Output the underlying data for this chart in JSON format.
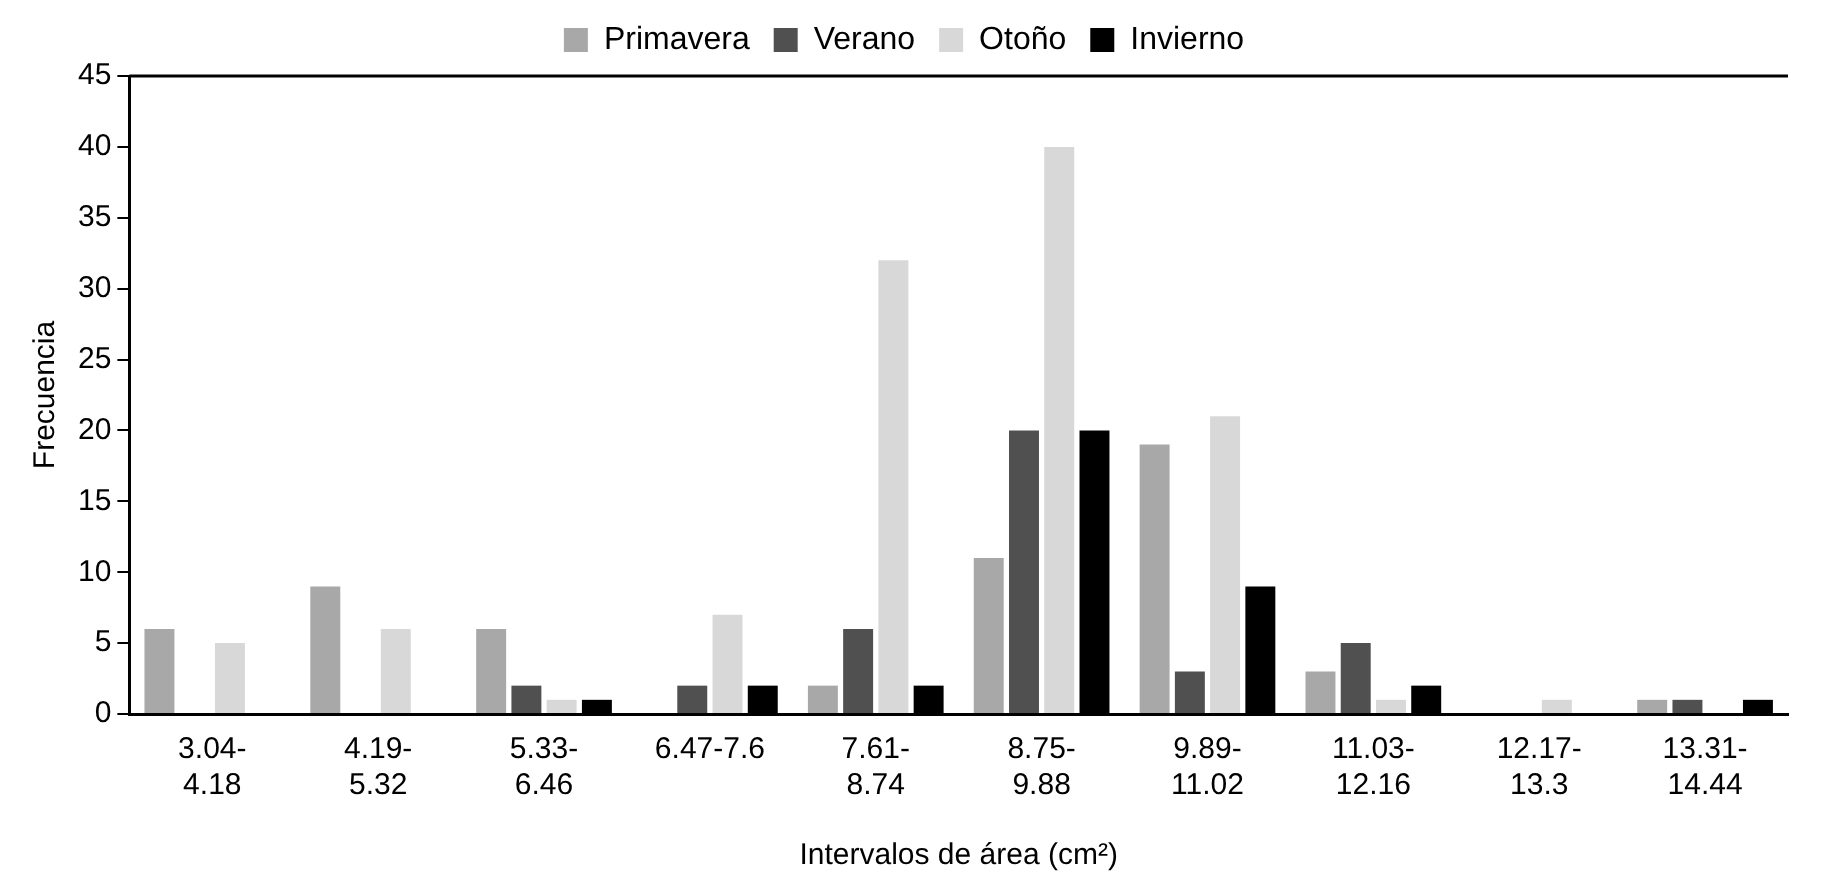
{
  "chart_data": {
    "type": "bar",
    "xlabel": "Intervalos de área (cm²)",
    "ylabel": "Frecuencia",
    "categories": [
      "3.04-\n4.18",
      "4.19-\n5.32",
      "5.33-\n6.46",
      "6.47-7.6",
      "7.61-\n8.74",
      "8.75-\n9.88",
      "9.89-\n11.02",
      "11.03-\n12.16",
      "12.17-\n13.3",
      "13.31-\n14.44"
    ],
    "series": [
      {
        "name": "Primavera",
        "color": "#a8a8a8",
        "values": [
          6,
          9,
          6,
          0,
          2,
          11,
          19,
          3,
          0,
          1
        ]
      },
      {
        "name": "Verano",
        "color": "#505050",
        "values": [
          0,
          0,
          2,
          2,
          6,
          20,
          3,
          5,
          0,
          1
        ]
      },
      {
        "name": "Otoño",
        "color": "#d8d8d8",
        "values": [
          5,
          6,
          1,
          7,
          32,
          40,
          21,
          1,
          1,
          0
        ]
      },
      {
        "name": "Invierno",
        "color": "#000000",
        "values": [
          0,
          0,
          1,
          2,
          2,
          20,
          9,
          2,
          0,
          1
        ]
      }
    ],
    "ylim": [
      0,
      45
    ],
    "yticks": [
      0,
      5,
      10,
      15,
      20,
      25,
      30,
      35,
      40,
      45
    ],
    "grid": false,
    "legend": "top"
  }
}
